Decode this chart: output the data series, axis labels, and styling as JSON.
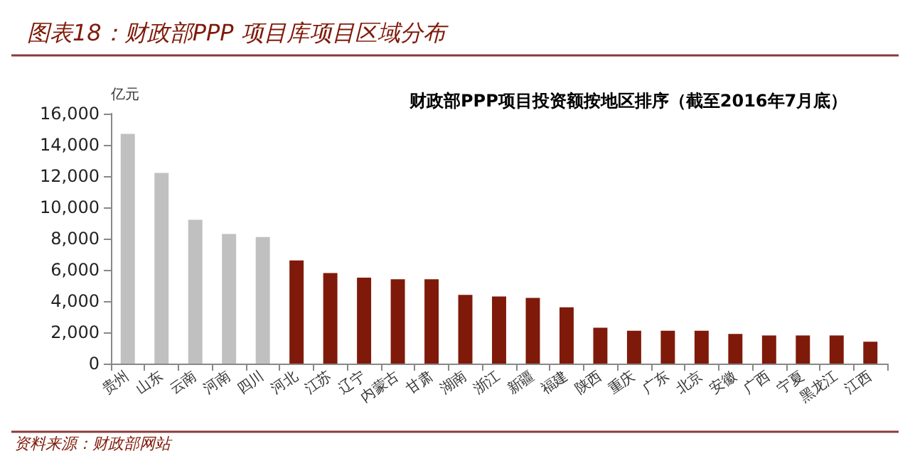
{
  "chart_data": {
    "type": "bar",
    "title": "图表18：财政部PPP 项目库项目区域分布",
    "subtitle": "财政部PPP项目投资额按地区排序（截至2016年7月底）",
    "ylabel": "亿元",
    "categories": [
      "贵州",
      "山东",
      "云南",
      "河南",
      "四川",
      "河北",
      "江苏",
      "辽宁",
      "内蒙古",
      "甘肃",
      "湖南",
      "浙江",
      "新疆",
      "福建",
      "陕西",
      "重庆",
      "广东",
      "北京",
      "安徽",
      "广西",
      "宁夏",
      "黑龙江",
      "江西"
    ],
    "values": [
      14700,
      12200,
      9200,
      8300,
      8100,
      6600,
      5800,
      5500,
      5400,
      5400,
      4400,
      4300,
      4200,
      3600,
      2300,
      2100,
      2100,
      2100,
      1900,
      1800,
      1800,
      1800,
      1400
    ],
    "colors": [
      "#c0c0c0",
      "#c0c0c0",
      "#c0c0c0",
      "#c0c0c0",
      "#c0c0c0",
      "#7f1a0a",
      "#7f1a0a",
      "#7f1a0a",
      "#7f1a0a",
      "#7f1a0a",
      "#7f1a0a",
      "#7f1a0a",
      "#7f1a0a",
      "#7f1a0a",
      "#7f1a0a",
      "#7f1a0a",
      "#7f1a0a",
      "#7f1a0a",
      "#7f1a0a",
      "#7f1a0a",
      "#7f1a0a",
      "#7f1a0a",
      "#7f1a0a"
    ],
    "ylim": [
      0,
      16000
    ],
    "yticks": [
      0,
      {
        "value": 2000,
        "label": "2,000"
      },
      {
        "value": 4000,
        "label": "4,000"
      },
      {
        "value": 6000,
        "label": "6,000"
      },
      {
        "value": 8000,
        "label": "8,000"
      },
      {
        "value": 10000,
        "label": "10,000"
      },
      {
        "value": 12000,
        "label": "12,000"
      },
      {
        "value": 14000,
        "label": "14,000"
      },
      {
        "value": 16000,
        "label": "16,000"
      }
    ],
    "annotations": [
      "资料来源：财政部网站"
    ]
  }
}
